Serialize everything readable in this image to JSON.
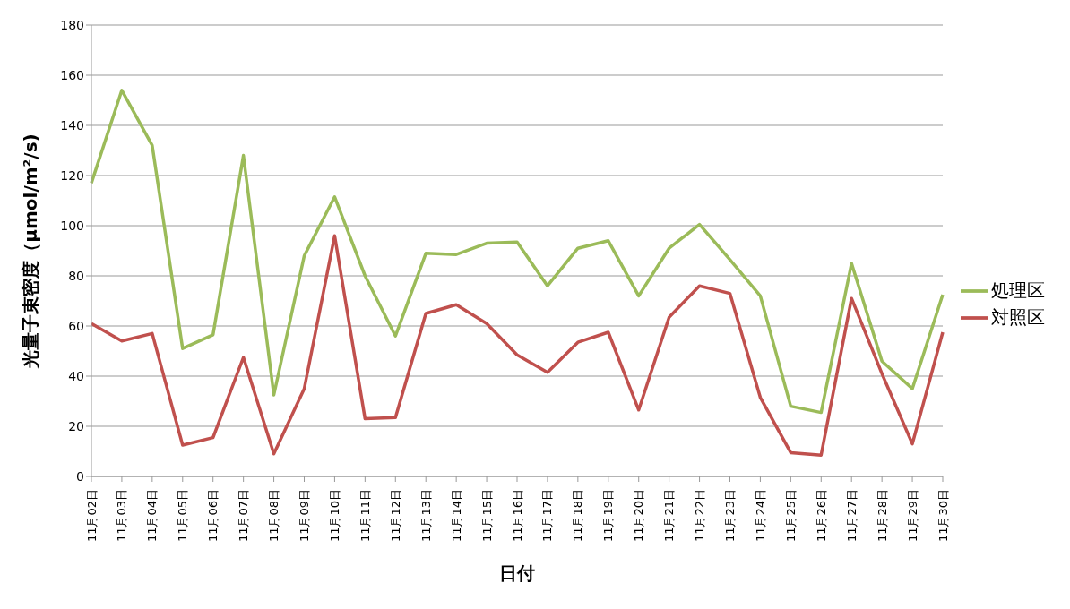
{
  "chart_data": {
    "type": "line",
    "xlabel": "日付",
    "ylabel": "光量子束密度（μmol/m²/s)",
    "categories": [
      "11月02日",
      "11月03日",
      "11月04日",
      "11月05日",
      "11月06日",
      "11月07日",
      "11月08日",
      "11月09日",
      "11月10日",
      "11月11日",
      "11月12日",
      "11月13日",
      "11月14日",
      "11月15日",
      "11月16日",
      "11月17日",
      "11月18日",
      "11月19日",
      "11月20日",
      "11月21日",
      "11月22日",
      "11月23日",
      "11月24日",
      "11月25日",
      "11月26日",
      "11月27日",
      "11月28日",
      "11月29日",
      "11月30日"
    ],
    "series": [
      {
        "name": "対照区",
        "color": "#c0504d",
        "values": [
          61,
          54,
          57,
          12.5,
          15.5,
          47.5,
          9,
          35,
          96,
          23,
          23.5,
          65,
          68.5,
          61,
          48.5,
          41.5,
          53.5,
          57.5,
          26.5,
          63.5,
          76,
          73,
          31.5,
          9.5,
          8.5,
          71,
          41,
          13,
          57.5
        ]
      },
      {
        "name": "処理区",
        "color": "#9bbb59",
        "values": [
          117,
          154,
          132,
          51,
          56.5,
          128,
          32.5,
          88,
          111.5,
          80,
          56,
          89,
          88.5,
          93,
          93.5,
          76,
          91,
          94,
          72,
          91,
          100.5,
          86.5,
          72,
          28,
          25.5,
          85,
          46,
          35,
          72.5
        ]
      }
    ],
    "ylim": [
      0,
      180
    ],
    "yticks": [
      0,
      20,
      40,
      60,
      80,
      100,
      120,
      140,
      160,
      180
    ],
    "grid": "y",
    "legend": "right",
    "marker": "none",
    "line_style": "solid"
  }
}
